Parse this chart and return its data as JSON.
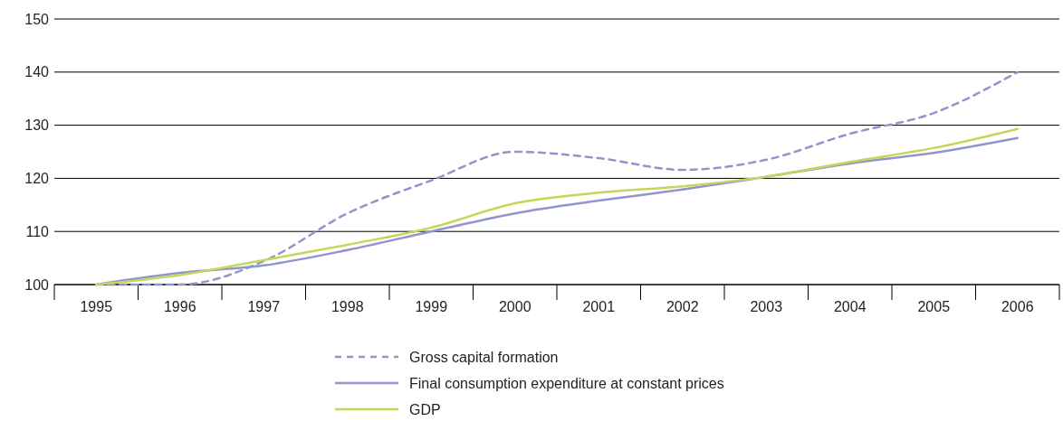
{
  "chart_data": {
    "type": "line",
    "categories": [
      "1995",
      "1996",
      "1997",
      "1998",
      "1999",
      "2000",
      "2001",
      "2002",
      "2003",
      "2004",
      "2005",
      "2006"
    ],
    "series": [
      {
        "name": "Gross capital formation",
        "color": "#8e96cc",
        "line_style": "dashed",
        "values": [
          100,
          100,
          104.4,
          113.4,
          119.6,
          125,
          123.8,
          121.6,
          123.5,
          128.4,
          132.3,
          140
        ]
      },
      {
        "name": "Final consumption expenditure at constant prices",
        "color": "#8e96cc",
        "line_style": "solid",
        "values": [
          100,
          102.2,
          103.6,
          106.5,
          110,
          113.4,
          115.8,
          117.9,
          120.3,
          122.8,
          124.8,
          127.6
        ]
      },
      {
        "name": "GDP",
        "color": "#c5d65b",
        "line_style": "solid",
        "values": [
          100,
          101.8,
          104.6,
          107.5,
          110.7,
          115.3,
          117.3,
          118.5,
          120.3,
          123.1,
          125.7,
          129.3
        ]
      }
    ],
    "ylim": [
      100,
      150
    ],
    "yticks": [
      100,
      110,
      120,
      130,
      140,
      150
    ],
    "grid": "y",
    "legend": "bottom"
  }
}
